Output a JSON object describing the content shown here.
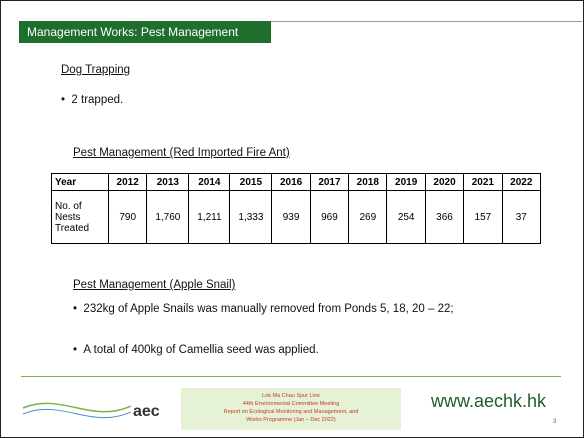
{
  "header": {
    "title": "Management Works: Pest Management"
  },
  "section1": {
    "heading": "Dog Trapping",
    "bullets": [
      "2 trapped."
    ]
  },
  "section2": {
    "heading": "Pest Management (Red Imported Fire Ant)",
    "table": {
      "header": [
        "Year",
        "2012",
        "2013",
        "2014",
        "2015",
        "2016",
        "2017",
        "2018",
        "2019",
        "2020",
        "2021",
        "2022"
      ],
      "rows": [
        [
          "No. of Nests Treated",
          "790",
          "1,760",
          "1,211",
          "1,333",
          "939",
          "969",
          "269",
          "254",
          "366",
          "157",
          "37"
        ]
      ]
    }
  },
  "section3": {
    "heading": "Pest Management (Apple Snail)",
    "bullets": [
      "232kg of Apple Snails was manually removed from Ponds 5, 18, 20 – 22;",
      "A total of 400kg of Camellia seed was applied."
    ]
  },
  "footer": {
    "logo": "aec",
    "meeting": [
      "Lok Ma Chau Spur Line",
      "44th Environmental Committee Meeting",
      "Report on Ecological Monitoring and Management, and",
      "Works Programme (Jan – Dec 2022)"
    ],
    "website": "www.aechk.hk",
    "page_number": "3"
  }
}
